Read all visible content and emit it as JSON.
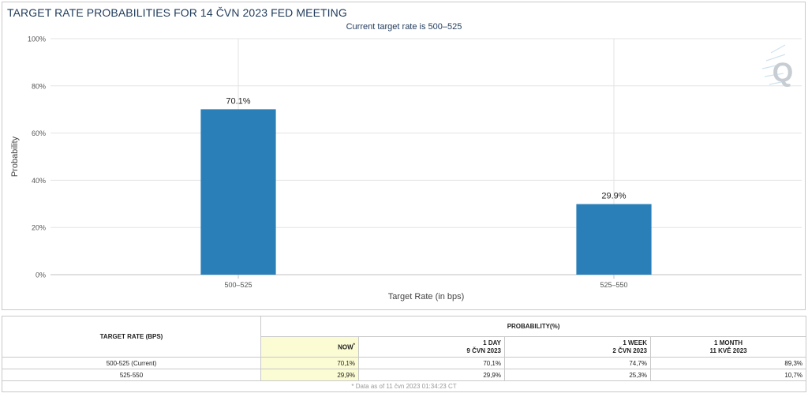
{
  "chart_title": "TARGET RATE PROBABILITIES FOR 14 ČVN 2023 FED MEETING",
  "colors": {
    "bar": "#2a7fb8",
    "title": "#1f3a5a",
    "now_highlight": "#fbfbd4"
  },
  "watermark_icon": "q-logo-icon",
  "chart_data": {
    "type": "bar",
    "title": "TARGET RATE PROBABILITIES FOR 14 ČVN 2023 FED MEETING",
    "subtitle": "Current target rate is 500–525",
    "xlabel": "Target Rate (in bps)",
    "ylabel": "Probability",
    "categories": [
      "500–525",
      "525–550"
    ],
    "values": [
      70.1,
      29.9
    ],
    "data_labels": [
      "70.1%",
      "29.9%"
    ],
    "ylim": [
      0,
      100
    ],
    "yticks": [
      0,
      20,
      40,
      60,
      80,
      100
    ],
    "ytick_labels": [
      "0%",
      "20%",
      "40%",
      "60%",
      "80%",
      "100%"
    ],
    "grid": true,
    "legend": false
  },
  "table": {
    "rate_header": "TARGET RATE (BPS)",
    "prob_header": "PROBABILITY(%)",
    "columns": [
      {
        "label": "NOW",
        "sub": ""
      },
      {
        "label": "1 DAY",
        "sub": "9 ČVN 2023"
      },
      {
        "label": "1 WEEK",
        "sub": "2 ČVN 2023"
      },
      {
        "label": "1 MONTH",
        "sub": "11 KVĚ 2023"
      }
    ],
    "now_marker": "*",
    "rows": [
      {
        "rate": "500-525 (Current)",
        "values": [
          "70,1%",
          "70,1%",
          "74,7%",
          "89,3%"
        ]
      },
      {
        "rate": "525-550",
        "values": [
          "29,9%",
          "29,9%",
          "25,3%",
          "10,7%"
        ]
      }
    ],
    "footnote": "* Data as of 11 čvn 2023 01:34:23 CT"
  }
}
